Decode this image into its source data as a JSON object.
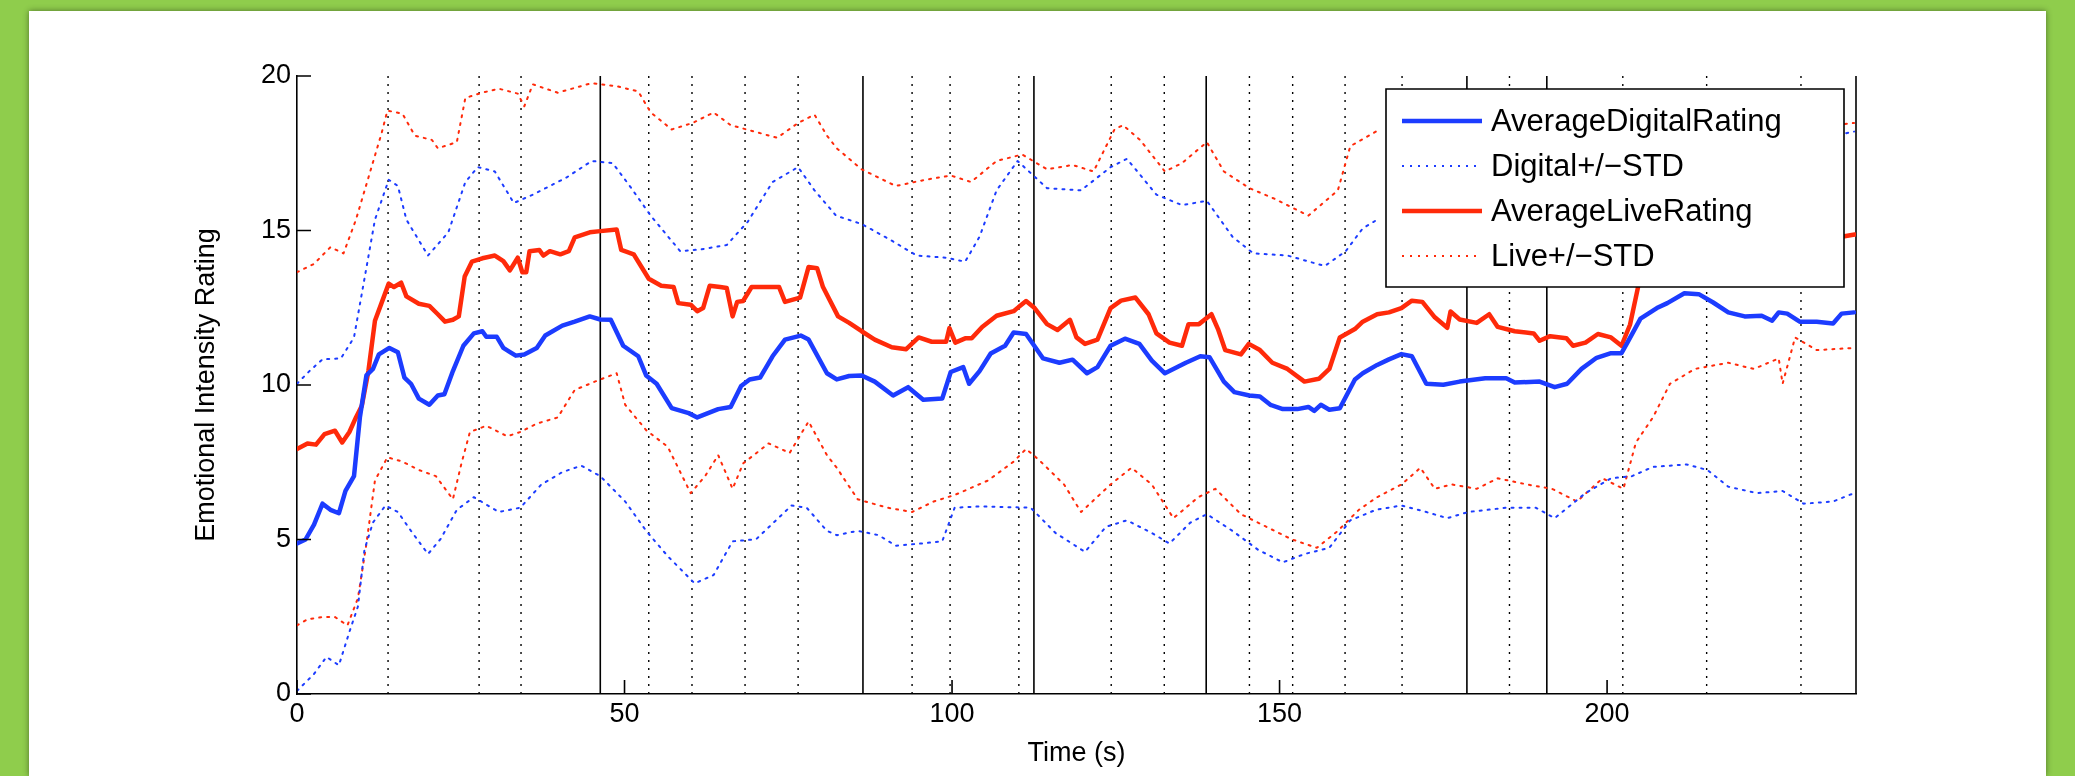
{
  "chart_data": {
    "type": "line",
    "xlabel": "Time (s)",
    "ylabel": "Emotional Intensity Rating",
    "xlim": [
      0,
      238
    ],
    "xticks": [
      0,
      50,
      100,
      150,
      200
    ],
    "ylim": [
      0,
      20
    ],
    "yticks": [
      0,
      5,
      10,
      15,
      20
    ],
    "legend": "top right",
    "marker": "none",
    "grid": false,
    "series": [
      {
        "name": "AverageDigitalRating",
        "color": "#1c3cff",
        "line_style": "solid",
        "x": [
          0,
          1.3,
          2.6,
          3.9,
          5.1,
          6.4,
          7.4,
          8.7,
          9.6,
          10.6,
          11.6,
          12.5,
          14.1,
          15.4,
          16.4,
          17.4,
          18.6,
          20.2,
          21.5,
          22.5,
          23.8,
          25.4,
          27.0,
          28.3,
          28.9,
          30.5,
          31.5,
          33.4,
          34.7,
          36.6,
          37.9,
          40.5,
          42.4,
          44.7,
          46.3,
          47.9,
          49.8,
          52.1,
          53.3,
          54.9,
          57.2,
          59.8,
          61.1,
          64.3,
          66.2,
          67.8,
          69.1,
          70.7,
          72.6,
          74.5,
          76.9,
          78.1,
          80.9,
          82.4,
          84.3,
          86.2,
          88.2,
          91.0,
          93.3,
          95.6,
          98.5,
          99.8,
          101.7,
          102.6,
          104.2,
          105.9,
          108.1,
          109.4,
          111.3,
          113.9,
          116.4,
          118.4,
          120.6,
          122.2,
          124.2,
          126.4,
          128.6,
          130.5,
          132.5,
          134.4,
          135.7,
          137.9,
          139.3,
          141.5,
          143.1,
          145.4,
          147.0,
          148.6,
          150.5,
          152.7,
          154.4,
          155.3,
          156.3,
          157.6,
          159.2,
          161.5,
          162.7,
          164.9,
          166.7,
          168.6,
          170.2,
          172.4,
          175.0,
          177.5,
          181.4,
          184.6,
          185.9,
          189.7,
          192.0,
          193.9,
          196.1,
          198.4,
          200.6,
          202.2,
          203.1,
          205.1,
          207.6,
          209.2,
          211.8,
          214.0,
          216.2,
          218.5,
          221.0,
          223.6,
          225.2,
          226.2,
          227.5,
          229.4,
          232.0,
          234.5,
          235.8,
          237.7
        ],
        "values": [
          4.87,
          5.0,
          5.48,
          6.16,
          5.96,
          5.85,
          6.57,
          7.05,
          8.95,
          10.31,
          10.52,
          10.99,
          11.2,
          11.06,
          10.24,
          10.04,
          9.56,
          9.36,
          9.66,
          9.7,
          10.45,
          11.27,
          11.67,
          11.74,
          11.56,
          11.56,
          11.2,
          10.95,
          10.99,
          11.2,
          11.6,
          11.92,
          12.05,
          12.22,
          12.12,
          12.11,
          11.27,
          10.93,
          10.31,
          10.04,
          9.25,
          9.09,
          8.95,
          9.22,
          9.29,
          9.97,
          10.18,
          10.24,
          10.93,
          11.47,
          11.6,
          11.47,
          10.38,
          10.18,
          10.29,
          10.31,
          10.11,
          9.66,
          9.93,
          9.52,
          9.56,
          10.42,
          10.58,
          10.04,
          10.45,
          11.02,
          11.27,
          11.7,
          11.65,
          10.86,
          10.72,
          10.82,
          10.38,
          10.58,
          11.27,
          11.5,
          11.33,
          10.79,
          10.38,
          10.58,
          10.72,
          10.93,
          10.9,
          10.11,
          9.77,
          9.66,
          9.63,
          9.36,
          9.22,
          9.22,
          9.29,
          9.16,
          9.36,
          9.2,
          9.25,
          10.18,
          10.38,
          10.65,
          10.83,
          11.0,
          10.93,
          10.04,
          10.01,
          10.11,
          10.22,
          10.22,
          10.08,
          10.11,
          9.93,
          10.04,
          10.52,
          10.88,
          11.03,
          11.03,
          11.37,
          12.15,
          12.49,
          12.65,
          12.97,
          12.94,
          12.67,
          12.35,
          12.22,
          12.24,
          12.08,
          12.35,
          12.31,
          12.05,
          12.05,
          11.99,
          12.31,
          12.35
        ]
      },
      {
        "name": "Digital+/−STD",
        "color": "#1c3cff",
        "line_style": "dotted",
        "x": [
          0,
          1.9,
          3.9,
          6.7,
          8.7,
          10.3,
          11.9,
          14.0,
          15.4,
          16.7,
          20.0,
          23.1,
          25.7,
          27.6,
          30.2,
          33.1,
          36.0,
          41.1,
          45.0,
          48.2,
          50.8,
          54.0,
          58.5,
          61.7,
          65.6,
          68.8,
          72.6,
          76.5,
          79.0,
          82.3,
          86.2,
          90.8,
          94.6,
          99.1,
          102.0,
          104.2,
          106.8,
          110.0,
          114.5,
          119.7,
          124.2,
          126.7,
          131.2,
          135.1,
          138.9,
          142.8,
          146.0,
          151.2,
          156.9,
          160.1,
          162.7,
          164.9,
          200,
          236.5,
          237.7
        ],
        "values": [
          10.04,
          10.45,
          10.83,
          10.86,
          11.54,
          13.44,
          15.35,
          16.64,
          16.44,
          15.35,
          14.19,
          14.94,
          16.57,
          17.05,
          16.91,
          15.89,
          16.16,
          16.71,
          17.25,
          17.18,
          16.44,
          15.48,
          14.33,
          14.39,
          14.53,
          15.28,
          16.57,
          17.05,
          16.3,
          15.48,
          15.21,
          14.67,
          14.19,
          14.12,
          13.99,
          14.8,
          16.3,
          17.25,
          16.37,
          16.3,
          17.05,
          17.32,
          16.16,
          15.82,
          15.96,
          14.8,
          14.26,
          14.19,
          13.85,
          14.33,
          15.07,
          15.35,
          null,
          18.15,
          18.2
        ]
      },
      {
        "color": "#1c3cff",
        "line_style": "dotted",
        "x": [
          0,
          2.6,
          4.5,
          6.4,
          8.0,
          9.3,
          10.3,
          11.6,
          13.5,
          15.4,
          17.4,
          20.0,
          21.9,
          24.4,
          27.0,
          30.8,
          34.1,
          37.3,
          40.5,
          43.4,
          46.3,
          50.1,
          53.3,
          56.6,
          60.7,
          63.6,
          66.5,
          70.1,
          75.5,
          77.8,
          80.9,
          82.4,
          85.6,
          88.8,
          91.4,
          95.3,
          98.5,
          100.4,
          104.2,
          108.1,
          112.0,
          115.8,
          120.3,
          123.5,
          126.7,
          130.5,
          133.2,
          136.4,
          138.9,
          142.8,
          146.7,
          150.5,
          153.8,
          157.6,
          160.8,
          164.7,
          168.6,
          172.4,
          175.6,
          178.8,
          184.6,
          189.1,
          192.0,
          196.7,
          200.6,
          203.8,
          207.0,
          212.1,
          215.3,
          218.5,
          222.9,
          226.8,
          230.0,
          234.5,
          237.7
        ],
        "values": [
          0.1,
          0.65,
          1.2,
          0.93,
          2.01,
          2.83,
          4.67,
          5.55,
          6.1,
          5.89,
          5.28,
          4.53,
          5.01,
          5.96,
          6.37,
          5.89,
          6.03,
          6.78,
          7.18,
          7.39,
          7.05,
          6.23,
          5.28,
          4.46,
          3.58,
          3.85,
          4.94,
          5.01,
          6.1,
          6.03,
          5.28,
          5.14,
          5.28,
          5.14,
          4.8,
          4.87,
          4.94,
          6.03,
          6.07,
          6.05,
          6.03,
          5.21,
          4.6,
          5.41,
          5.62,
          5.21,
          4.87,
          5.55,
          5.82,
          5.28,
          4.67,
          4.26,
          4.53,
          4.73,
          5.62,
          5.96,
          6.1,
          5.89,
          5.69,
          5.89,
          6.03,
          6.03,
          5.69,
          6.5,
          6.98,
          7.05,
          7.35,
          7.43,
          7.25,
          6.71,
          6.5,
          6.57,
          6.16,
          6.23,
          6.5
        ]
      },
      {
        "name": "AverageLiveRating",
        "color": "#ff2a0a",
        "line_style": "solid",
        "x": [
          0,
          1.6,
          2.9,
          4.2,
          5.8,
          6.9,
          8.0,
          9.0,
          9.9,
          10.9,
          11.9,
          12.9,
          14.0,
          14.8,
          15.9,
          16.7,
          18.6,
          20.2,
          21.5,
          22.6,
          23.8,
          24.7,
          25.6,
          26.7,
          28.3,
          30.2,
          31.5,
          32.5,
          33.7,
          34.4,
          35.0,
          35.5,
          37.0,
          37.6,
          38.6,
          40.2,
          41.5,
          42.4,
          44.7,
          46.3,
          48.8,
          49.5,
          51.4,
          53.7,
          55.6,
          57.5,
          58.2,
          60.1,
          61.1,
          62.0,
          63.0,
          64.6,
          65.6,
          66.5,
          67.2,
          68.1,
          69.4,
          73.6,
          74.5,
          76.8,
          78.1,
          79.4,
          80.3,
          82.6,
          84.3,
          86.2,
          88.2,
          90.8,
          93.0,
          94.9,
          96.9,
          99.1,
          99.6,
          100.5,
          102.0,
          103.0,
          104.6,
          106.8,
          109.4,
          111.3,
          112.6,
          114.5,
          116.1,
          118.0,
          119.0,
          120.3,
          122.2,
          124.2,
          125.8,
          128.0,
          130.0,
          131.2,
          133.2,
          135.1,
          136.1,
          137.7,
          139.6,
          140.6,
          141.7,
          144.1,
          145.3,
          147.0,
          148.9,
          151.2,
          153.8,
          156.0,
          157.6,
          159.2,
          161.5,
          162.7,
          164.9,
          166.7,
          168.6,
          170.2,
          171.8,
          173.7,
          175.6,
          176.1,
          177.5,
          180.1,
          182.0,
          183.3,
          185.9,
          188.8,
          189.7,
          191.3,
          193.8,
          194.8,
          196.7,
          198.6,
          200.6,
          202.2,
          203.5,
          204.8,
          220,
          235.8,
          237.8
        ],
        "values": [
          7.93,
          8.11,
          8.07,
          8.41,
          8.52,
          8.14,
          8.48,
          8.95,
          9.33,
          10.45,
          12.08,
          12.65,
          13.28,
          13.17,
          13.31,
          12.87,
          12.63,
          12.56,
          12.29,
          12.05,
          12.11,
          12.22,
          13.51,
          13.99,
          14.1,
          14.19,
          14.01,
          13.71,
          14.12,
          13.65,
          13.65,
          14.33,
          14.37,
          14.19,
          14.33,
          14.23,
          14.33,
          14.78,
          14.94,
          14.98,
          15.03,
          14.37,
          14.23,
          13.44,
          13.21,
          13.17,
          12.65,
          12.6,
          12.39,
          12.49,
          13.21,
          13.17,
          13.14,
          12.22,
          12.69,
          12.72,
          13.17,
          13.17,
          12.69,
          12.83,
          13.82,
          13.78,
          13.17,
          12.22,
          12.01,
          11.74,
          11.47,
          11.22,
          11.16,
          11.54,
          11.4,
          11.4,
          11.84,
          11.37,
          11.51,
          11.51,
          11.88,
          12.24,
          12.39,
          12.72,
          12.49,
          11.97,
          11.78,
          12.11,
          11.54,
          11.33,
          11.47,
          12.49,
          12.73,
          12.83,
          12.29,
          11.67,
          11.37,
          11.27,
          11.97,
          11.97,
          12.29,
          11.81,
          11.13,
          10.99,
          11.33,
          11.13,
          10.72,
          10.52,
          10.11,
          10.2,
          10.52,
          11.54,
          11.81,
          12.05,
          12.29,
          12.35,
          12.49,
          12.73,
          12.69,
          12.19,
          11.85,
          12.38,
          12.12,
          12.01,
          12.29,
          11.88,
          11.74,
          11.67,
          11.43,
          11.58,
          11.51,
          11.27,
          11.37,
          11.65,
          11.54,
          11.27,
          11.95,
          13.24,
          null,
          14.8,
          14.87
        ]
      },
      {
        "name": "Live+/−STD",
        "color": "#ff2a0a",
        "line_style": "dotted",
        "x": [
          0,
          2.6,
          5.1,
          7.1,
          9.0,
          10.9,
          12.9,
          13.8,
          16.1,
          18.0,
          20.6,
          21.5,
          24.4,
          25.7,
          28.3,
          30.8,
          33.7,
          34.7,
          36.0,
          39.8,
          45.0,
          48.8,
          52.1,
          54.0,
          57.2,
          60.4,
          63.6,
          66.2,
          73.3,
          76.5,
          79.0,
          80.9,
          82.4,
          86.2,
          91.4,
          95.9,
          99.8,
          102.9,
          106.8,
          110.7,
          114.5,
          118.4,
          121.6,
          124.8,
          126.1,
          128.7,
          132.5,
          135.1,
          138.9,
          141.5,
          145.4,
          149.2,
          154.4,
          158.9,
          160.8,
          164.7,
          200,
          236.3,
          237.7
        ],
        "values": [
          13.65,
          13.92,
          14.46,
          14.26,
          15.35,
          16.71,
          18.14,
          18.88,
          18.78,
          18.07,
          17.93,
          17.66,
          17.86,
          19.29,
          19.46,
          19.59,
          19.43,
          19.02,
          19.73,
          19.46,
          19.77,
          19.67,
          19.5,
          18.82,
          18.27,
          18.48,
          18.82,
          18.41,
          18.0,
          18.48,
          18.75,
          18.07,
          17.66,
          16.98,
          16.44,
          16.64,
          16.78,
          16.57,
          17.25,
          17.46,
          16.98,
          17.12,
          16.91,
          18.27,
          18.41,
          17.93,
          16.91,
          17.18,
          17.86,
          16.91,
          16.37,
          16.03,
          15.48,
          16.3,
          17.73,
          18.2,
          null,
          18.45,
          18.48
        ]
      },
      {
        "color": "#ff2a0a",
        "line_style": "dotted",
        "x": [
          0,
          1.6,
          3.9,
          5.8,
          7.7,
          9.3,
          10.6,
          11.9,
          13.8,
          16.1,
          18.6,
          21.2,
          23.8,
          25.1,
          26.4,
          28.9,
          32.1,
          34.1,
          36.6,
          39.8,
          42.4,
          46.3,
          48.8,
          50.1,
          53.3,
          56.6,
          60.1,
          62.3,
          64.3,
          66.5,
          68.1,
          72.0,
          75.2,
          78.1,
          80.9,
          82.4,
          85.6,
          90.1,
          93.9,
          97.2,
          100.4,
          105.5,
          109.4,
          111.3,
          113.2,
          117.1,
          119.7,
          124.2,
          127.4,
          130.5,
          133.8,
          137.6,
          140.2,
          144.1,
          148.0,
          151.8,
          155.7,
          158.9,
          162.1,
          164.9,
          168.6,
          171.5,
          173.7,
          176.3,
          180.1,
          183.3,
          187.8,
          191.6,
          195.4,
          199.3,
          202.5,
          204.4,
          207.0,
          209.6,
          213.4,
          218.5,
          222.4,
          226.2,
          226.8,
          228.7,
          232.0,
          237.7
        ],
        "values": [
          2.22,
          2.42,
          2.49,
          2.49,
          2.22,
          3.1,
          4.87,
          6.91,
          7.66,
          7.52,
          7.25,
          7.05,
          6.3,
          7.46,
          8.48,
          8.68,
          8.34,
          8.48,
          8.75,
          8.95,
          9.84,
          10.18,
          10.38,
          9.36,
          8.54,
          8.0,
          6.5,
          7.05,
          7.73,
          6.64,
          7.46,
          8.11,
          7.8,
          8.82,
          7.73,
          7.32,
          6.3,
          6.03,
          5.89,
          6.23,
          6.44,
          6.91,
          7.52,
          7.93,
          7.59,
          6.78,
          5.89,
          6.78,
          7.32,
          6.78,
          5.69,
          6.37,
          6.64,
          5.82,
          5.41,
          5.01,
          4.73,
          5.28,
          5.96,
          6.37,
          6.78,
          7.32,
          6.64,
          6.78,
          6.64,
          6.98,
          6.78,
          6.64,
          6.23,
          6.98,
          6.64,
          8.14,
          8.95,
          10.04,
          10.52,
          10.72,
          10.52,
          10.86,
          10.04,
          11.54,
          11.13,
          11.2
        ]
      }
    ],
    "ref_lines": [
      {
        "axis": "x",
        "value": 13.9,
        "line_style": "dotted",
        "color": "#000000"
      },
      {
        "axis": "x",
        "value": 27.8,
        "line_style": "dotted",
        "color": "#000000"
      },
      {
        "axis": "x",
        "value": 34.2,
        "line_style": "dotted",
        "color": "#000000"
      },
      {
        "axis": "x",
        "value": 46.3,
        "line_style": "solid",
        "color": "#000000"
      },
      {
        "axis": "x",
        "value": 53.7,
        "line_style": "dotted",
        "color": "#000000"
      },
      {
        "axis": "x",
        "value": 60.3,
        "line_style": "dotted",
        "color": "#000000"
      },
      {
        "axis": "x",
        "value": 68.4,
        "line_style": "dotted",
        "color": "#000000"
      },
      {
        "axis": "x",
        "value": 76.5,
        "line_style": "dotted",
        "color": "#000000"
      },
      {
        "axis": "x",
        "value": 86.4,
        "line_style": "solid",
        "color": "#000000"
      },
      {
        "axis": "x",
        "value": 93.9,
        "line_style": "dotted",
        "color": "#000000"
      },
      {
        "axis": "x",
        "value": 99.7,
        "line_style": "dotted",
        "color": "#000000"
      },
      {
        "axis": "x",
        "value": 110.2,
        "line_style": "dotted",
        "color": "#000000"
      },
      {
        "axis": "x",
        "value": 112.5,
        "line_style": "solid",
        "color": "#000000"
      },
      {
        "axis": "x",
        "value": 124.3,
        "line_style": "dotted",
        "color": "#000000"
      },
      {
        "axis": "x",
        "value": 132.4,
        "line_style": "dotted",
        "color": "#000000"
      },
      {
        "axis": "x",
        "value": 138.8,
        "line_style": "solid",
        "color": "#000000"
      },
      {
        "axis": "x",
        "value": 145.4,
        "line_style": "dotted",
        "color": "#000000"
      },
      {
        "axis": "x",
        "value": 152.0,
        "line_style": "dotted",
        "color": "#000000"
      },
      {
        "axis": "x",
        "value": 160.0,
        "line_style": "dotted",
        "color": "#000000"
      },
      {
        "axis": "x",
        "value": 168.7,
        "line_style": "dotted",
        "color": "#000000"
      },
      {
        "axis": "x",
        "value": 178.6,
        "line_style": "solid",
        "color": "#000000"
      },
      {
        "axis": "x",
        "value": 185.1,
        "line_style": "dotted",
        "color": "#000000"
      },
      {
        "axis": "x",
        "value": 190.8,
        "line_style": "solid",
        "color": "#000000"
      },
      {
        "axis": "x",
        "value": 202.4,
        "line_style": "dotted",
        "color": "#000000"
      },
      {
        "axis": "x",
        "value": 215.2,
        "line_style": "dotted",
        "color": "#000000"
      },
      {
        "axis": "x",
        "value": 229.6,
        "line_style": "dotted",
        "color": "#000000"
      },
      {
        "axis": "x",
        "value": 238,
        "line_style": "solid",
        "color": "#000000"
      }
    ]
  }
}
